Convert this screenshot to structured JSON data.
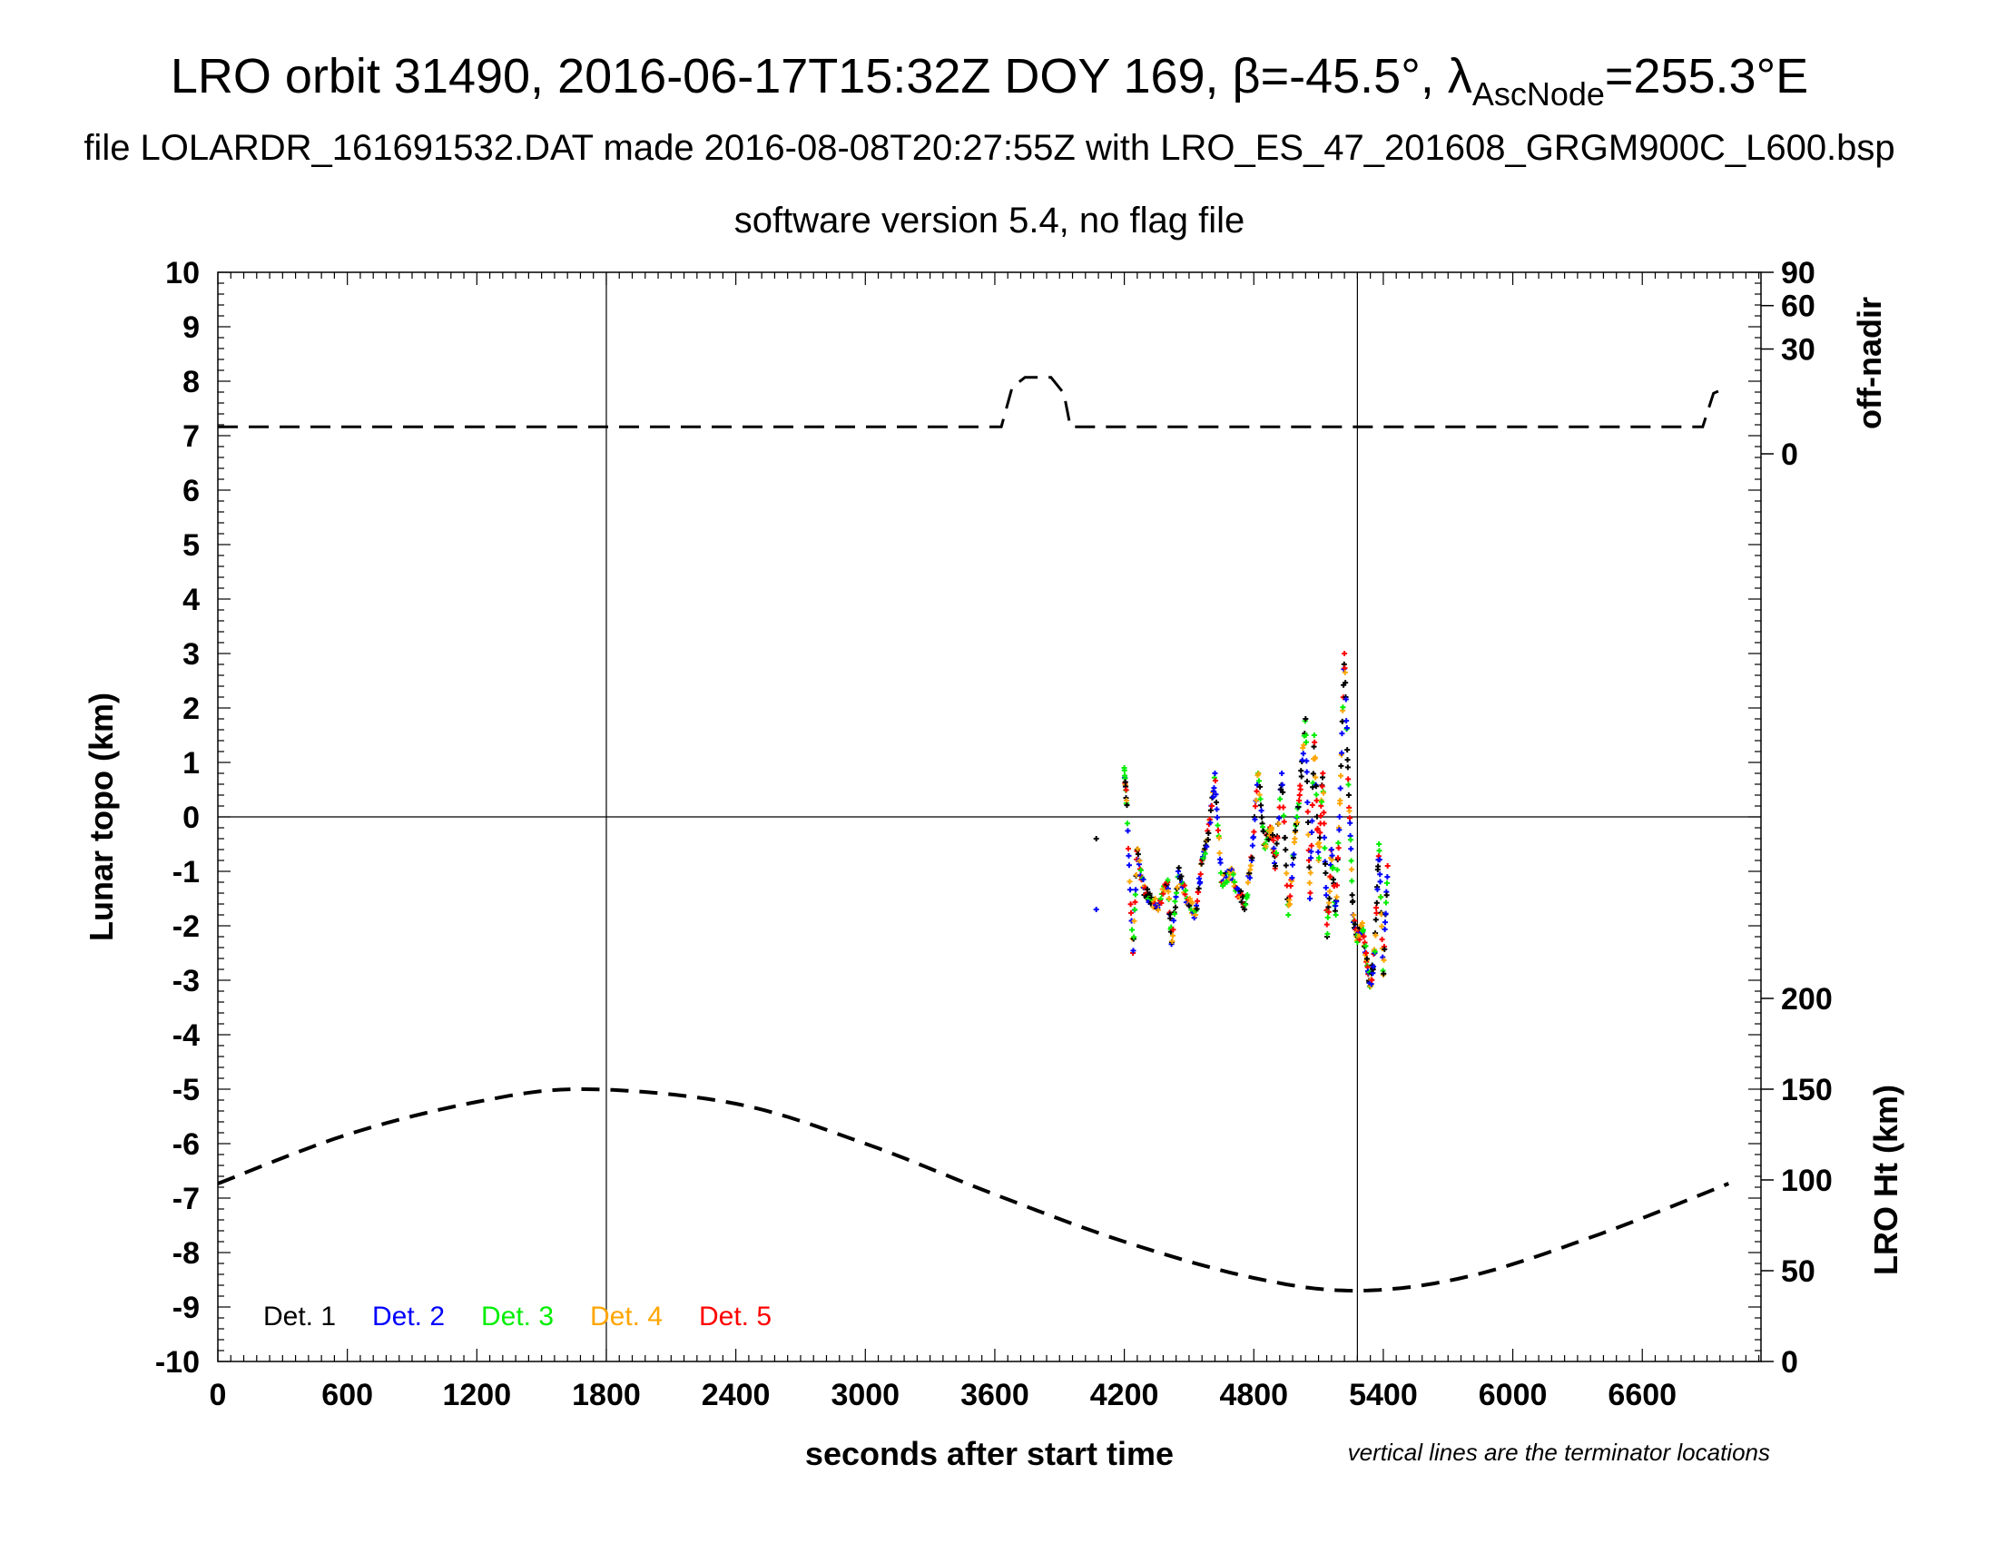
{
  "title": {
    "main_prefix": "LRO orbit 31490, 2016-06-17T15:32Z DOY 169, β=-45.5°, λ",
    "main_sub": "AscNode",
    "main_suffix": "=255.3°E",
    "line2": "file LOLARDR_161691532.DAT made 2016-08-08T20:27:55Z with LRO_ES_47_201608_GRGM900C_L600.bsp",
    "line3": "software version 5.4, no flag file"
  },
  "note": "vertical lines are the terminator locations",
  "chart_data": {
    "type": "scatter",
    "xlabel": "seconds after start time",
    "ylabel_left": "Lunar topo (km)",
    "ylabel_right_top": "off-nadir",
    "ylabel_right_bottom": "LRO Ht (km)",
    "xlim": [
      0,
      7150
    ],
    "ylim": [
      -10,
      10
    ],
    "x_ticks": [
      "0",
      "600",
      "1200",
      "1800",
      "2400",
      "3000",
      "3600",
      "4200",
      "4800",
      "5400",
      "6000",
      "6600"
    ],
    "y_ticks": [
      "10",
      "9",
      "8",
      "7",
      "6",
      "5",
      "4",
      "3",
      "2",
      "1",
      "0",
      "-1",
      "-2",
      "-3",
      "-4",
      "-5",
      "-6",
      "-7",
      "-8",
      "-9",
      "-10"
    ],
    "offnadir_ticks": [
      "90",
      "60",
      "30",
      "0"
    ],
    "height_ticks": [
      "200",
      "150",
      "100",
      "50",
      "0"
    ],
    "terminator_lines_x": [
      1800,
      5280
    ],
    "zero_line_y": 0,
    "legend": [
      {
        "label": "Det. 1",
        "color": "#000000"
      },
      {
        "label": "Det. 2",
        "color": "#0000ff"
      },
      {
        "label": "Det. 3",
        "color": "#00ee00"
      },
      {
        "label": "Det. 4",
        "color": "#ffa500"
      },
      {
        "label": "Det. 5",
        "color": "#ff0000"
      }
    ],
    "offnadir_deg": [
      {
        "x": 0,
        "y": 2
      },
      {
        "x": 3630,
        "y": 2
      },
      {
        "x": 3680,
        "y": 12
      },
      {
        "x": 3740,
        "y": 16
      },
      {
        "x": 3860,
        "y": 16
      },
      {
        "x": 3920,
        "y": 10
      },
      {
        "x": 3950,
        "y": 2
      },
      {
        "x": 6880,
        "y": 2
      },
      {
        "x": 6930,
        "y": 10
      },
      {
        "x": 6990,
        "y": 12
      }
    ],
    "lro_height_km": [
      {
        "x": 0,
        "y": 98
      },
      {
        "x": 600,
        "y": 125
      },
      {
        "x": 1200,
        "y": 143
      },
      {
        "x": 1700,
        "y": 150
      },
      {
        "x": 2400,
        "y": 142
      },
      {
        "x": 3000,
        "y": 120
      },
      {
        "x": 3600,
        "y": 92
      },
      {
        "x": 4200,
        "y": 66
      },
      {
        "x": 4800,
        "y": 46
      },
      {
        "x": 5280,
        "y": 39
      },
      {
        "x": 5800,
        "y": 47
      },
      {
        "x": 6400,
        "y": 70
      },
      {
        "x": 7000,
        "y": 98
      }
    ],
    "topo_profile_km": [
      {
        "x": 4070,
        "y": -0.4
      },
      {
        "x": 4070,
        "y": -1.7
      },
      {
        "x": 4200,
        "y": 0.9
      },
      {
        "x": 4210,
        "y": 0.3
      },
      {
        "x": 4240,
        "y": -2.5
      },
      {
        "x": 4260,
        "y": -0.6
      },
      {
        "x": 4290,
        "y": -1.3
      },
      {
        "x": 4320,
        "y": -1.5
      },
      {
        "x": 4360,
        "y": -1.6
      },
      {
        "x": 4400,
        "y": -1.2
      },
      {
        "x": 4420,
        "y": -2.3
      },
      {
        "x": 4450,
        "y": -1.0
      },
      {
        "x": 4490,
        "y": -1.5
      },
      {
        "x": 4530,
        "y": -1.8
      },
      {
        "x": 4560,
        "y": -0.8
      },
      {
        "x": 4590,
        "y": -0.3
      },
      {
        "x": 4620,
        "y": 0.8
      },
      {
        "x": 4650,
        "y": -1.2
      },
      {
        "x": 4690,
        "y": -1.0
      },
      {
        "x": 4720,
        "y": -1.3
      },
      {
        "x": 4760,
        "y": -1.6
      },
      {
        "x": 4790,
        "y": -0.8
      },
      {
        "x": 4820,
        "y": 0.8
      },
      {
        "x": 4850,
        "y": -0.5
      },
      {
        "x": 4880,
        "y": -0.2
      },
      {
        "x": 4900,
        "y": -0.9
      },
      {
        "x": 4930,
        "y": 0.8
      },
      {
        "x": 4960,
        "y": -1.8
      },
      {
        "x": 4990,
        "y": -0.4
      },
      {
        "x": 5010,
        "y": 0.3
      },
      {
        "x": 5040,
        "y": 1.8
      },
      {
        "x": 5060,
        "y": -1.5
      },
      {
        "x": 5080,
        "y": 1.5
      },
      {
        "x": 5100,
        "y": -0.8
      },
      {
        "x": 5120,
        "y": 0.8
      },
      {
        "x": 5140,
        "y": -2.2
      },
      {
        "x": 5160,
        "y": -0.6
      },
      {
        "x": 5180,
        "y": -1.8
      },
      {
        "x": 5200,
        "y": 0.3
      },
      {
        "x": 5220,
        "y": 3.0
      },
      {
        "x": 5240,
        "y": 0.4
      },
      {
        "x": 5260,
        "y": -1.8
      },
      {
        "x": 5280,
        "y": -2.3
      },
      {
        "x": 5300,
        "y": -2.0
      },
      {
        "x": 5320,
        "y": -2.5
      },
      {
        "x": 5340,
        "y": -3.1
      },
      {
        "x": 5360,
        "y": -2.5
      },
      {
        "x": 5380,
        "y": -0.5
      },
      {
        "x": 5400,
        "y": -2.9
      },
      {
        "x": 5420,
        "y": -0.9
      }
    ]
  }
}
